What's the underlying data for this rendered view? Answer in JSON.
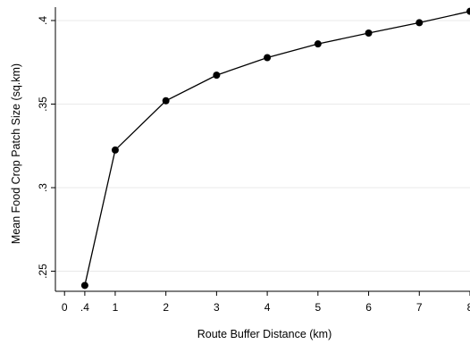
{
  "chart_data": {
    "type": "line",
    "title": "",
    "xlabel": "Route Buffer Distance (km)",
    "ylabel": "Mean Food Crop Patch Size (sq.km)",
    "x_ticks": [
      0,
      0.4,
      1,
      2,
      3,
      4,
      5,
      6,
      7,
      8
    ],
    "x_tick_labels": [
      "0",
      ".4",
      "1",
      "2",
      "3",
      "4",
      "5",
      "6",
      "7",
      "8"
    ],
    "y_ticks": [
      0.25,
      0.3,
      0.35,
      0.4
    ],
    "y_tick_labels": [
      ".25",
      ".3",
      ".35",
      ".4"
    ],
    "xlim": [
      -0.18,
      8
    ],
    "ylim": [
      0.238,
      0.408
    ],
    "grid": true,
    "series": [
      {
        "x": [
          0.4,
          1,
          2,
          3,
          4,
          5,
          6,
          7,
          8
        ],
        "values": [
          0.2415,
          0.3225,
          0.352,
          0.3673,
          0.3778,
          0.386,
          0.3925,
          0.3987,
          0.4055
        ],
        "color": "#000000",
        "marker": "circle"
      }
    ]
  }
}
